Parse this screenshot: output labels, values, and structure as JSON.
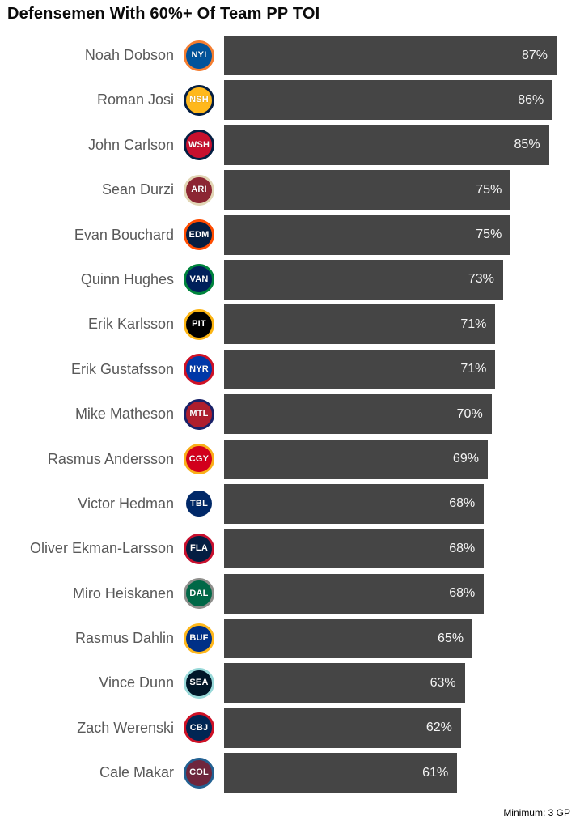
{
  "title": "Defensemen With 60%+ Of Team PP TOI",
  "footer_note": "Minimum: 3 GP",
  "colors": {
    "bar_fill": "#454545",
    "bar_label": "#f5f5f5",
    "player_name": "#595959",
    "title": "#0a0a0a",
    "background": "#ffffff"
  },
  "chart_data": {
    "type": "bar",
    "orientation": "horizontal",
    "title": "Defensemen With 60%+ Of Team PP TOI",
    "xlabel": "",
    "ylabel": "",
    "unit": "%",
    "xlim": [
      0,
      87
    ],
    "grid": false,
    "legend": false,
    "annotation": "Minimum: 3 GP",
    "categories": [
      "Noah Dobson",
      "Roman Josi",
      "John Carlson",
      "Sean Durzi",
      "Evan Bouchard",
      "Quinn Hughes",
      "Erik Karlsson",
      "Erik Gustafsson",
      "Mike Matheson",
      "Rasmus Andersson",
      "Victor Hedman",
      "Oliver Ekman-Larsson",
      "Miro Heiskanen",
      "Rasmus Dahlin",
      "Vince Dunn",
      "Zach Werenski",
      "Cale Makar"
    ],
    "values": [
      87,
      86,
      85,
      75,
      75,
      73,
      71,
      71,
      70,
      69,
      68,
      68,
      68,
      65,
      63,
      62,
      61
    ],
    "rows": [
      {
        "player": "Noah Dobson",
        "team": "New York Islanders",
        "team_abbr": "NYI",
        "value": 87,
        "label": "87%",
        "logo_primary": "#00539b",
        "logo_secondary": "#f47d30"
      },
      {
        "player": "Roman Josi",
        "team": "Nashville Predators",
        "team_abbr": "NSH",
        "value": 86,
        "label": "86%",
        "logo_primary": "#ffb81c",
        "logo_secondary": "#041e42"
      },
      {
        "player": "John Carlson",
        "team": "Washington Capitals",
        "team_abbr": "WSH",
        "value": 85,
        "label": "85%",
        "logo_primary": "#c8102e",
        "logo_secondary": "#041e42"
      },
      {
        "player": "Sean Durzi",
        "team": "Arizona Coyotes",
        "team_abbr": "ARI",
        "value": 75,
        "label": "75%",
        "logo_primary": "#8c2633",
        "logo_secondary": "#e2d6b5"
      },
      {
        "player": "Evan Bouchard",
        "team": "Edmonton Oilers",
        "team_abbr": "EDM",
        "value": 75,
        "label": "75%",
        "logo_primary": "#041e42",
        "logo_secondary": "#ff4c00"
      },
      {
        "player": "Quinn Hughes",
        "team": "Vancouver Canucks",
        "team_abbr": "VAN",
        "value": 73,
        "label": "73%",
        "logo_primary": "#00205b",
        "logo_secondary": "#00843d"
      },
      {
        "player": "Erik Karlsson",
        "team": "Pittsburgh Penguins",
        "team_abbr": "PIT",
        "value": 71,
        "label": "71%",
        "logo_primary": "#000000",
        "logo_secondary": "#fcb514"
      },
      {
        "player": "Erik Gustafsson",
        "team": "New York Rangers",
        "team_abbr": "NYR",
        "value": 71,
        "label": "71%",
        "logo_primary": "#0038a8",
        "logo_secondary": "#ce1126"
      },
      {
        "player": "Mike Matheson",
        "team": "Montreal Canadiens",
        "team_abbr": "MTL",
        "value": 70,
        "label": "70%",
        "logo_primary": "#af1e2d",
        "logo_secondary": "#192168"
      },
      {
        "player": "Rasmus Andersson",
        "team": "Calgary Flames",
        "team_abbr": "CGY",
        "value": 69,
        "label": "69%",
        "logo_primary": "#d2001c",
        "logo_secondary": "#faaf19"
      },
      {
        "player": "Victor Hedman",
        "team": "Tampa Bay Lightning",
        "team_abbr": "TBL",
        "value": 68,
        "label": "68%",
        "logo_primary": "#002868",
        "logo_secondary": "#ffffff"
      },
      {
        "player": "Oliver Ekman-Larsson",
        "team": "Florida Panthers",
        "team_abbr": "FLA",
        "value": 68,
        "label": "68%",
        "logo_primary": "#041e42",
        "logo_secondary": "#c8102e"
      },
      {
        "player": "Miro Heiskanen",
        "team": "Dallas Stars",
        "team_abbr": "DAL",
        "value": 68,
        "label": "68%",
        "logo_primary": "#006847",
        "logo_secondary": "#8f8f8c"
      },
      {
        "player": "Rasmus Dahlin",
        "team": "Buffalo Sabres",
        "team_abbr": "BUF",
        "value": 65,
        "label": "65%",
        "logo_primary": "#003087",
        "logo_secondary": "#ffb81c"
      },
      {
        "player": "Vince Dunn",
        "team": "Seattle Kraken",
        "team_abbr": "SEA",
        "value": 63,
        "label": "63%",
        "logo_primary": "#001628",
        "logo_secondary": "#99d9d9"
      },
      {
        "player": "Zach Werenski",
        "team": "Columbus Blue Jackets",
        "team_abbr": "CBJ",
        "value": 62,
        "label": "62%",
        "logo_primary": "#002654",
        "logo_secondary": "#ce1126"
      },
      {
        "player": "Cale Makar",
        "team": "Colorado Avalanche",
        "team_abbr": "COL",
        "value": 61,
        "label": "61%",
        "logo_primary": "#6f263d",
        "logo_secondary": "#236192"
      }
    ]
  }
}
